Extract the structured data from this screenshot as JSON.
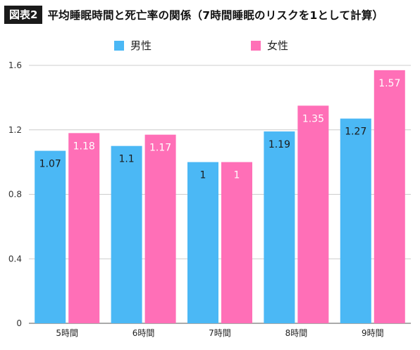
{
  "header": {
    "badge": "図表2",
    "title": "平均睡眠時間と死亡率の関係（7時間睡眠のリスクを1として計算）"
  },
  "legend": [
    {
      "label": "男性",
      "color": "#4bb8f5"
    },
    {
      "label": "女性",
      "color": "#ff6fb7"
    }
  ],
  "chart_data": {
    "type": "bar",
    "title": "平均睡眠時間と死亡率の関係（7時間睡眠のリスクを1として計算）",
    "categories": [
      "5時間",
      "6時間",
      "7時間",
      "8時間",
      "9時間"
    ],
    "series": [
      {
        "name": "男性",
        "color": "#4bb8f5",
        "values": [
          1.07,
          1.1,
          1,
          1.19,
          1.27
        ],
        "labels": [
          "1.07",
          "1.1",
          "1",
          "1.19",
          "1.27"
        ]
      },
      {
        "name": "女性",
        "color": "#ff6fb7",
        "values": [
          1.18,
          1.17,
          1,
          1.35,
          1.57
        ],
        "labels": [
          "1.18",
          "1.17",
          "1",
          "1.35",
          "1.57"
        ]
      }
    ],
    "ylim": [
      0,
      1.6
    ],
    "yticks": [
      "0",
      "0.4",
      "0.8",
      "1.2",
      "1.6"
    ],
    "grid": true,
    "legend_position": "top"
  }
}
